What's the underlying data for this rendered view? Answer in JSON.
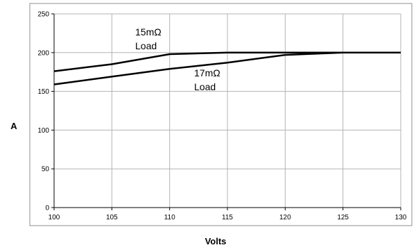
{
  "chart_data": {
    "type": "line",
    "title": "",
    "xlabel": "Volts",
    "ylabel": "A",
    "xlim": [
      100,
      130
    ],
    "ylim": [
      0,
      250
    ],
    "x_ticks": [
      "100",
      "105",
      "110",
      "115",
      "120",
      "125",
      "130"
    ],
    "y_ticks": [
      "0",
      "50",
      "100",
      "150",
      "200",
      "250"
    ],
    "grid": true,
    "legend": "none",
    "series": [
      {
        "name": "15mΩ Load",
        "x": [
          100,
          105,
          110,
          115,
          120,
          125,
          130
        ],
        "values": [
          176,
          185,
          198,
          200,
          200,
          200,
          200
        ]
      },
      {
        "name": "17mΩ Load",
        "x": [
          100,
          105,
          110,
          115,
          120,
          125,
          130
        ],
        "values": [
          159,
          169,
          179,
          187,
          197,
          200,
          200
        ]
      }
    ],
    "annotations": [
      {
        "lines": [
          "15mΩ",
          "Load"
        ],
        "series": 0
      },
      {
        "lines": [
          "17mΩ",
          "Load"
        ],
        "series": 1
      }
    ],
    "colors": {
      "line": "#000000",
      "grid": "#b3b3b3",
      "frame": "#8c8c8c"
    }
  }
}
